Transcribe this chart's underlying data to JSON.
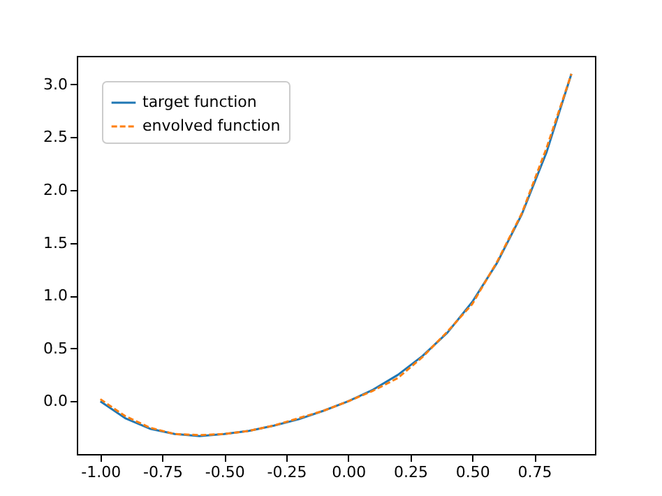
{
  "chart_data": {
    "type": "line",
    "x": [
      -1.0,
      -0.9,
      -0.8,
      -0.7,
      -0.6,
      -0.5,
      -0.4,
      -0.3,
      -0.2,
      -0.1,
      0.0,
      0.1,
      0.2,
      0.3,
      0.4,
      0.5,
      0.6,
      0.7,
      0.8,
      0.9
    ],
    "series": [
      {
        "name": "target function",
        "color": "#1f77b4",
        "line_style": "solid",
        "values": [
          0.0,
          -0.16,
          -0.26,
          -0.31,
          -0.33,
          -0.31,
          -0.28,
          -0.23,
          -0.17,
          -0.09,
          0.0,
          0.11,
          0.25,
          0.43,
          0.65,
          0.94,
          1.31,
          1.77,
          2.36,
          3.1
        ]
      },
      {
        "name": "envolved function",
        "color": "#ff7f0e",
        "line_style": "dashed",
        "values": [
          0.02,
          -0.14,
          -0.25,
          -0.31,
          -0.32,
          -0.31,
          -0.28,
          -0.23,
          -0.16,
          -0.09,
          0.0,
          0.1,
          0.22,
          0.42,
          0.66,
          0.92,
          1.32,
          1.78,
          2.4,
          3.1
        ]
      }
    ],
    "xlim": [
      -1.095,
      0.995
    ],
    "ylim": [
      -0.5,
      3.27
    ],
    "xticks": [
      {
        "value": -1,
        "label": "-1.00"
      },
      {
        "value": -0.75,
        "label": "-0.75"
      },
      {
        "value": -0.5,
        "label": "-0.50"
      },
      {
        "value": -0.25,
        "label": "-0.25"
      },
      {
        "value": 0,
        "label": "0.00"
      },
      {
        "value": 0.25,
        "label": "0.25"
      },
      {
        "value": 0.5,
        "label": "0.50"
      },
      {
        "value": 0.75,
        "label": "0.75"
      }
    ],
    "yticks": [
      {
        "value": 0,
        "label": "0.0"
      },
      {
        "value": 0.5,
        "label": "0.5"
      },
      {
        "value": 1,
        "label": "1.0"
      },
      {
        "value": 1.5,
        "label": "1.5"
      },
      {
        "value": 2,
        "label": "2.0"
      },
      {
        "value": 2.5,
        "label": "2.5"
      },
      {
        "value": 3,
        "label": "3.0"
      }
    ],
    "legend": "top left",
    "grid": false
  }
}
